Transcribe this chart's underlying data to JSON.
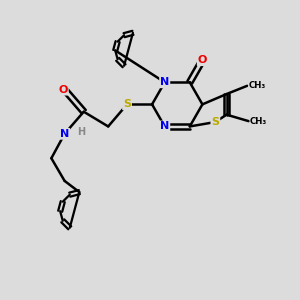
{
  "background_color": "#dcdcdc",
  "atom_colors": {
    "C": "#000000",
    "N": "#0000ee",
    "O": "#ee0000",
    "S": "#bbaa00",
    "H": "#888888"
  },
  "bond_color": "#000000",
  "bond_width": 1.8,
  "figsize": [
    3.0,
    3.0
  ],
  "dpi": 100
}
